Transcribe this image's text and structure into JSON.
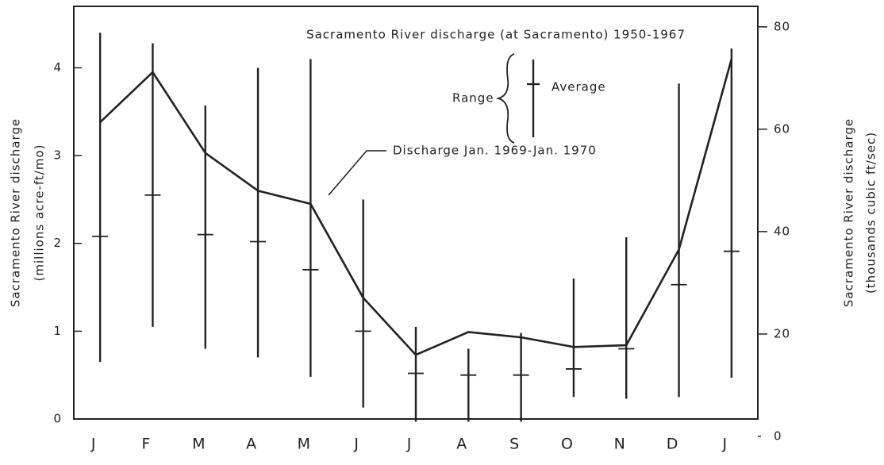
{
  "chart_data": {
    "type": "range-line",
    "title": "Sacramento River discharge (at Sacramento) 1950-1967",
    "y_label": [
      "Sacramento River discharge",
      "(millions acre-ft/mo)"
    ],
    "y2_label": [
      "Sacramento River discharge",
      "(thousands cubic ft/sec)"
    ],
    "categories": [
      "J",
      "F",
      "M",
      "A",
      "M",
      "J",
      "J",
      "A",
      "S",
      "O",
      "N",
      "D",
      "J"
    ],
    "range": {
      "name": "Range",
      "low": [
        0.65,
        1.05,
        0.8,
        0.7,
        0.48,
        0.13,
        -0.03,
        -0.03,
        -0.03,
        0.25,
        0.23,
        0.25,
        0.47
      ],
      "high": [
        4.4,
        4.28,
        3.57,
        4.0,
        4.1,
        2.5,
        1.05,
        0.8,
        0.98,
        1.6,
        2.07,
        3.82,
        4.22
      ]
    },
    "average": {
      "name": "Average",
      "values": [
        2.08,
        2.55,
        2.1,
        2.02,
        1.7,
        1.0,
        0.52,
        0.5,
        0.5,
        0.57,
        0.8,
        1.53,
        1.91
      ]
    },
    "series": [
      {
        "name": "Discharge Jan. 1969-Jan. 1970",
        "color": "#222222",
        "values": [
          3.38,
          3.95,
          3.03,
          2.6,
          2.45,
          1.38,
          0.73,
          0.99,
          0.93,
          0.82,
          0.84,
          1.93,
          4.1
        ]
      }
    ],
    "ylim": [
      0,
      4.7
    ],
    "yticks": [
      0,
      1,
      2,
      3,
      4
    ],
    "y2lim": [
      3.4,
      84
    ],
    "y2ticks": [
      0,
      20,
      40,
      60,
      80
    ]
  }
}
